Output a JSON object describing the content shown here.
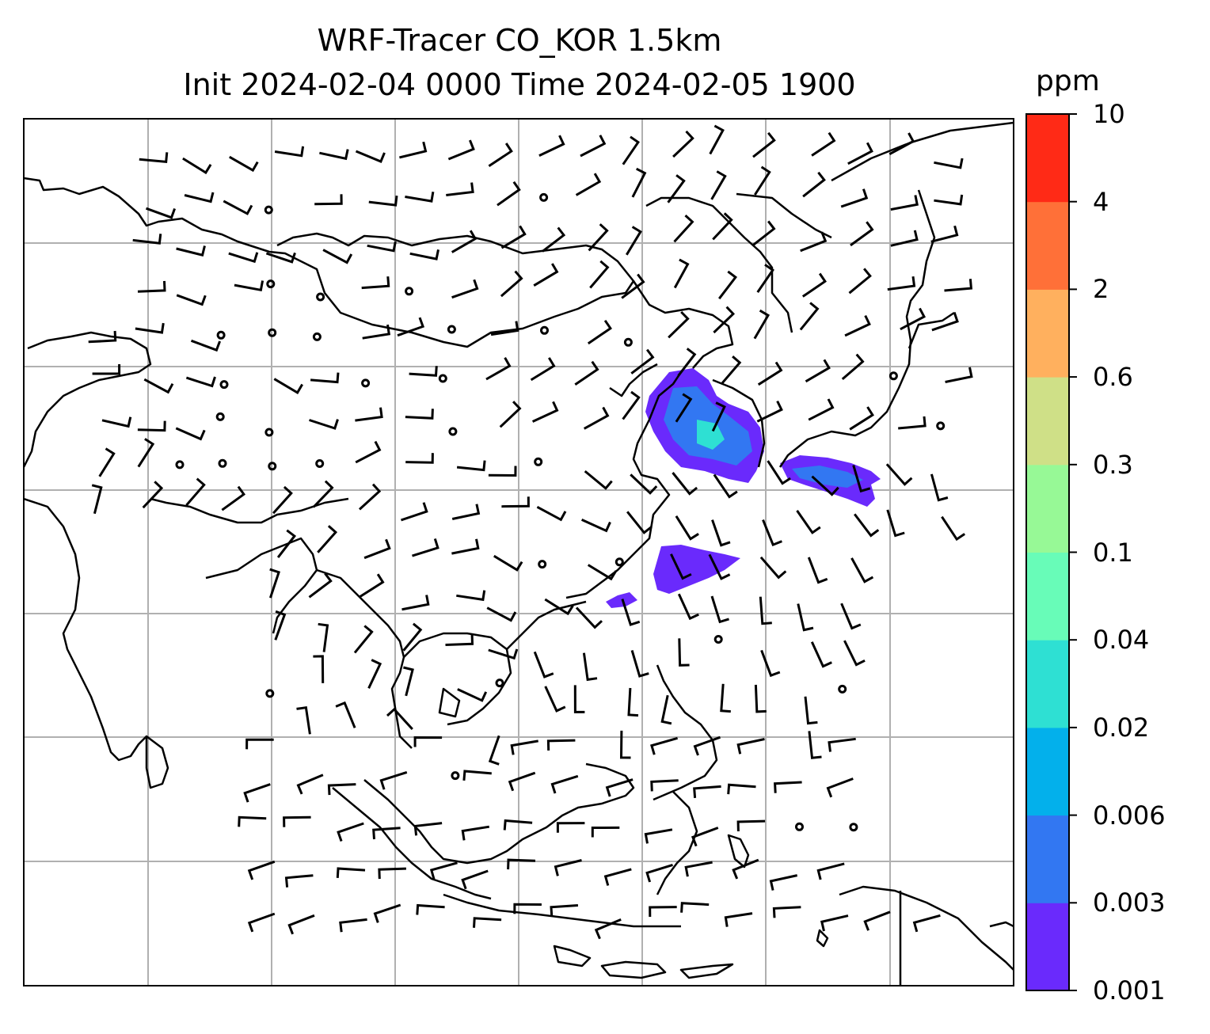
{
  "title": {
    "line1": "WRF-Tracer CO_KOR 1.5km",
    "line2": "Init 2024-02-04 0000 Time 2024-02-05 1900"
  },
  "colorbar": {
    "unit": "ppm",
    "levels": [
      "0.001",
      "0.003",
      "0.006",
      "0.02",
      "0.04",
      "0.1",
      "0.3",
      "0.6",
      "2",
      "4",
      "10"
    ],
    "colors": [
      "#6a2afc",
      "#3277f2",
      "#03b0eb",
      "#2ee0d3",
      "#68fcb8",
      "#97f996",
      "#cfe087",
      "#ffb05e",
      "#ff7038",
      "#ff2a16"
    ]
  },
  "map": {
    "tracer_fill_color": "#6a2afc",
    "tracer_core_color": "#3277f2",
    "tracer_inner_color": "#2ee0d3",
    "gridline_color": "#b0b0b0",
    "coastline_color": "#000000",
    "wind_barbs": true,
    "calm_wind_markers": true
  }
}
